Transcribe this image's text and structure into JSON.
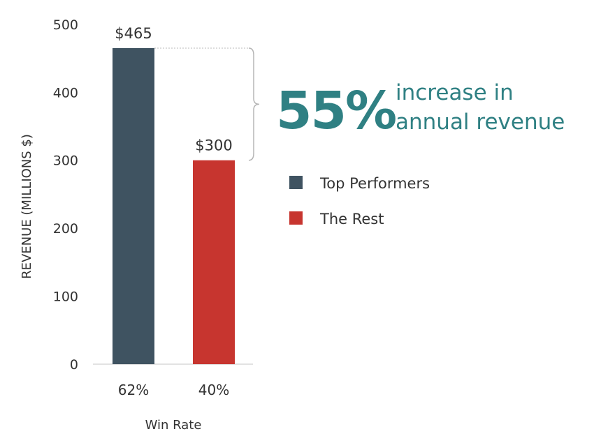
{
  "chart_data": {
    "type": "bar",
    "categories": [
      "62%",
      "40%"
    ],
    "series": [
      {
        "name": "Top Performers",
        "values": [
          465,
          null
        ],
        "color": "#3f5361"
      },
      {
        "name": "The Rest",
        "values": [
          null,
          300
        ],
        "color": "#c7352f"
      }
    ],
    "values": [
      465,
      300
    ],
    "data_labels": [
      "$465",
      "$300"
    ],
    "xlabel": "Win Rate",
    "ylabel": "REVENUE (MILLIONS $)",
    "ylim": [
      0,
      500
    ],
    "yticks": [
      0,
      100,
      200,
      300,
      400,
      500
    ],
    "grid": false,
    "legend": {
      "placement": "right",
      "entries": [
        {
          "label": "Top Performers",
          "color": "#3f5361"
        },
        {
          "label": "The Rest",
          "color": "#c7352f"
        }
      ]
    },
    "annotation": {
      "big_text": "55%",
      "line1": "increase in",
      "line2": "annual revenue",
      "color": "#2f8083"
    }
  }
}
